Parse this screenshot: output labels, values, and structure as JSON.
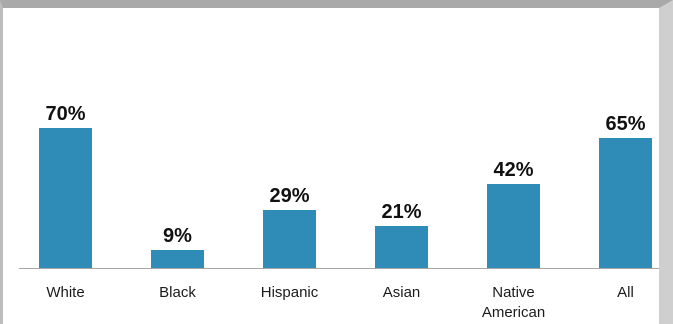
{
  "chart_data": {
    "type": "bar",
    "categories": [
      "White",
      "Black",
      "Hispanic",
      "Asian",
      "Native American",
      "All"
    ],
    "values": [
      70,
      9,
      29,
      21,
      42,
      65
    ],
    "value_labels": [
      "70%",
      "9%",
      "29%",
      "21%",
      "42%",
      "65%"
    ],
    "title": "",
    "xlabel": "",
    "ylabel": "",
    "ylim": [
      0,
      100
    ],
    "grid": false,
    "legend": "none",
    "colors": {
      "bar": "#2f8cb7",
      "baseline": "#a7a7a7",
      "text": "#111111"
    }
  }
}
